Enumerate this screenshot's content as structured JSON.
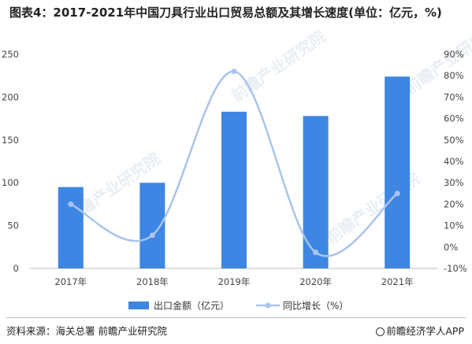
{
  "title": "图表4：2017-2021年中国刀具行业出口贸易总额及其增长速度(单位：亿元，%)",
  "source": "资料来源：海关总署 前瞻产业研究院",
  "brand": "@前瞻经济学人APP",
  "watermark": "前瞻产业研究院",
  "chart_data": {
    "type": "bar",
    "categories": [
      "2017年",
      "2018年",
      "2019年",
      "2020年",
      "2021年"
    ],
    "series": [
      {
        "name": "出口金额（亿元）",
        "type": "bar",
        "axis": "left",
        "values": [
          95,
          100,
          183,
          178,
          224
        ],
        "color": "#3e86e3"
      },
      {
        "name": "同比增长（%）",
        "type": "line",
        "axis": "right",
        "values": [
          20,
          5.5,
          82,
          -2.5,
          25
        ],
        "color": "#a9c4ec"
      }
    ],
    "y_left": {
      "min": 0,
      "max": 250,
      "ticks": [
        "0",
        "50",
        "100",
        "150",
        "200",
        "250"
      ]
    },
    "y_right": {
      "min": -10,
      "max": 90,
      "ticks": [
        "-10%",
        "0%",
        "10%",
        "20%",
        "30%",
        "40%",
        "50%",
        "60%",
        "70%",
        "80%",
        "90%"
      ]
    },
    "grid": false,
    "legend_position": "bottom"
  }
}
